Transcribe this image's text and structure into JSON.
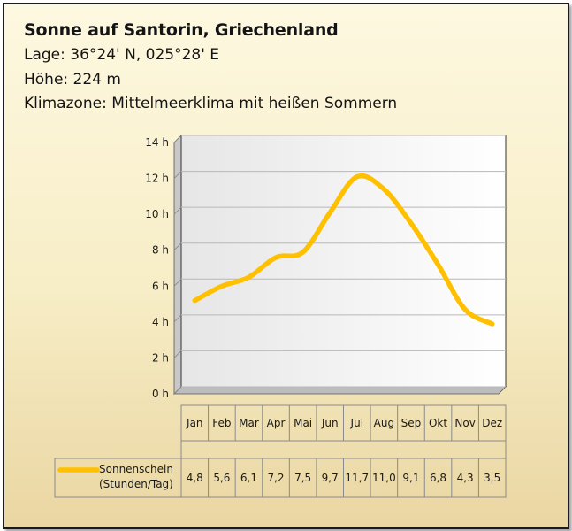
{
  "header": {
    "title": "Sonne auf Santorin, Griechenland",
    "location": "Lage: 36°24' N, 025°28' E",
    "altitude": "Höhe: 224 m",
    "climate_zone": "Klimazone: Mittelmeerklima mit heißen Sommern"
  },
  "colors": {
    "series_line": "#ffc000",
    "plot_background": "#ffffff",
    "gridline": "#b8b8b8",
    "frame_background": "#f7edc6"
  },
  "chart_data": {
    "type": "line",
    "title": "",
    "xlabel": "",
    "ylabel": "",
    "categories": [
      "Jan",
      "Feb",
      "Mar",
      "Apr",
      "Mai",
      "Jun",
      "Jul",
      "Aug",
      "Sep",
      "Okt",
      "Nov",
      "Dez"
    ],
    "series": [
      {
        "name": "Sonnenschein (Stunden/Tag)",
        "name_lines": [
          "Sonnenschein",
          "(Stunden/Tag)"
        ],
        "values": [
          4.8,
          5.6,
          6.1,
          7.2,
          7.5,
          9.7,
          11.7,
          11.0,
          9.1,
          6.8,
          4.3,
          3.5
        ],
        "labels": [
          "4,8",
          "5,6",
          "6,1",
          "7,2",
          "7,5",
          "9,7",
          "11,7",
          "11,0",
          "9,1",
          "6,8",
          "4,3",
          "3,5"
        ]
      }
    ],
    "y_ticks": [
      0,
      2,
      4,
      6,
      8,
      10,
      12,
      14
    ],
    "y_tick_labels": [
      "0 h",
      "2 h",
      "4 h",
      "6 h",
      "8 h",
      "10 h",
      "12 h",
      "14 h"
    ],
    "ylim": [
      0,
      14
    ],
    "grid": true,
    "legend": "data-table-below",
    "smoothed": true
  }
}
